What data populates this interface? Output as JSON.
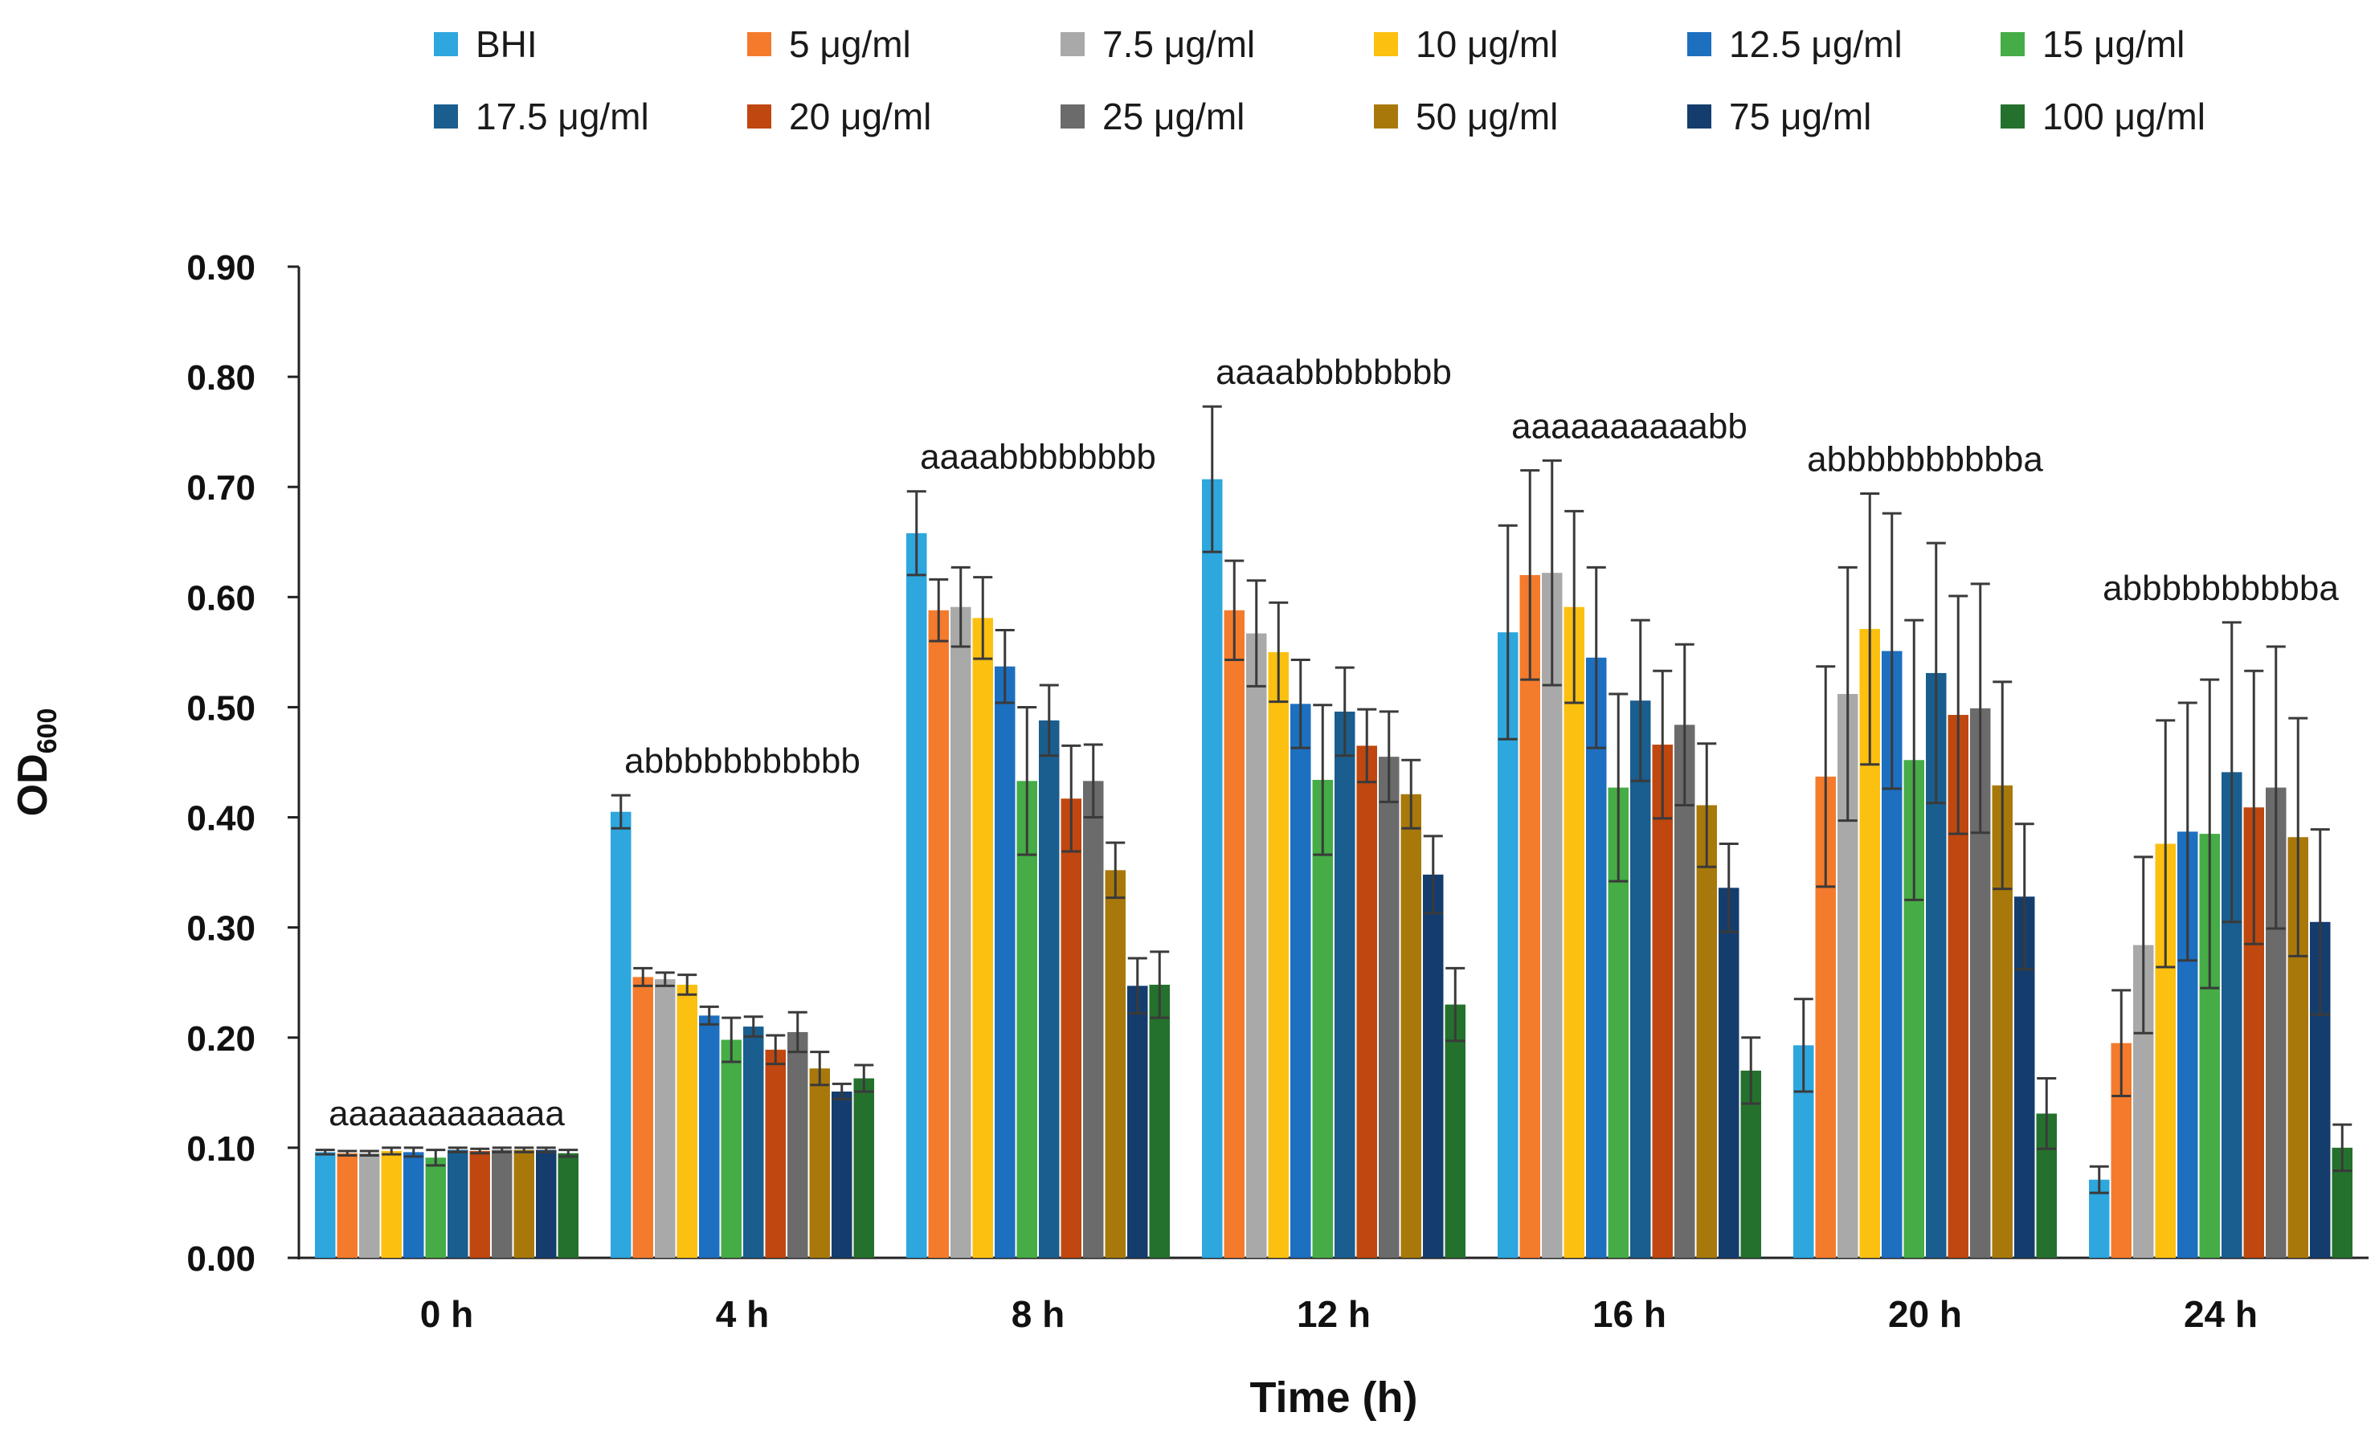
{
  "chart_data": {
    "type": "bar",
    "title": "",
    "xlabel": "Time (h)",
    "ylabel_main": "OD",
    "ylabel_sub": "600",
    "ylim": [
      0,
      0.9
    ],
    "yticks": [
      "0.00",
      "0.10",
      "0.20",
      "0.30",
      "0.40",
      "0.50",
      "0.60",
      "0.70",
      "0.80",
      "0.90"
    ],
    "categories": [
      "0 h",
      "4 h",
      "8 h",
      "12 h",
      "16 h",
      "20 h",
      "24 h"
    ],
    "significance_labels": [
      "aaaaaaaaaaaa",
      "abbbbbbbbbbb",
      "aaaabbbbbbbb",
      "aaaabbbbbbbb",
      "aaaaaaaaaabb",
      "abbbbbbbbbba",
      "abbbbbbbbbba"
    ],
    "series": [
      {
        "name": "BHI",
        "color": "#2ea6de",
        "values": [
          0.096,
          0.405,
          0.658,
          0.707,
          0.568,
          0.193,
          0.071
        ],
        "errors": [
          0.002,
          0.015,
          0.038,
          0.066,
          0.097,
          0.042,
          0.012
        ]
      },
      {
        "name": "5 μg/ml",
        "color": "#f47b2c",
        "values": [
          0.095,
          0.255,
          0.588,
          0.588,
          0.62,
          0.437,
          0.195
        ],
        "errors": [
          0.002,
          0.008,
          0.028,
          0.045,
          0.095,
          0.1,
          0.048
        ]
      },
      {
        "name": "7.5 μg/ml",
        "color": "#a9a9a9",
        "values": [
          0.095,
          0.253,
          0.591,
          0.567,
          0.622,
          0.512,
          0.284
        ],
        "errors": [
          0.002,
          0.006,
          0.036,
          0.048,
          0.102,
          0.115,
          0.08
        ]
      },
      {
        "name": "10 μg/ml",
        "color": "#fcc010",
        "values": [
          0.097,
          0.248,
          0.581,
          0.55,
          0.591,
          0.571,
          0.376
        ],
        "errors": [
          0.003,
          0.009,
          0.037,
          0.045,
          0.087,
          0.123,
          0.112
        ]
      },
      {
        "name": "12.5 μg/ml",
        "color": "#1d6fc0",
        "values": [
          0.096,
          0.22,
          0.537,
          0.503,
          0.545,
          0.551,
          0.387
        ],
        "errors": [
          0.004,
          0.008,
          0.033,
          0.04,
          0.082,
          0.125,
          0.117
        ]
      },
      {
        "name": "15 μg/ml",
        "color": "#45ac46",
        "values": [
          0.091,
          0.198,
          0.433,
          0.434,
          0.427,
          0.452,
          0.385
        ],
        "errors": [
          0.007,
          0.02,
          0.067,
          0.068,
          0.085,
          0.127,
          0.14
        ]
      },
      {
        "name": "17.5 μg/ml",
        "color": "#195e8e",
        "values": [
          0.098,
          0.21,
          0.488,
          0.496,
          0.506,
          0.531,
          0.441
        ],
        "errors": [
          0.002,
          0.009,
          0.032,
          0.04,
          0.073,
          0.118,
          0.136
        ]
      },
      {
        "name": "20 μg/ml",
        "color": "#c0470f",
        "values": [
          0.097,
          0.189,
          0.417,
          0.465,
          0.466,
          0.493,
          0.409
        ],
        "errors": [
          0.002,
          0.013,
          0.048,
          0.033,
          0.067,
          0.108,
          0.124
        ]
      },
      {
        "name": "25 μg/ml",
        "color": "#6b6b6b",
        "values": [
          0.098,
          0.205,
          0.433,
          0.455,
          0.484,
          0.499,
          0.427
        ],
        "errors": [
          0.002,
          0.018,
          0.033,
          0.041,
          0.073,
          0.113,
          0.128
        ]
      },
      {
        "name": "50 μg/ml",
        "color": "#a8790a",
        "values": [
          0.098,
          0.172,
          0.352,
          0.421,
          0.411,
          0.429,
          0.382
        ],
        "errors": [
          0.002,
          0.015,
          0.025,
          0.031,
          0.056,
          0.094,
          0.108
        ]
      },
      {
        "name": "75 μg/ml",
        "color": "#143d6e",
        "values": [
          0.098,
          0.151,
          0.247,
          0.348,
          0.336,
          0.328,
          0.305
        ],
        "errors": [
          0.002,
          0.007,
          0.025,
          0.035,
          0.04,
          0.066,
          0.084
        ]
      },
      {
        "name": "100 μg/ml",
        "color": "#24712d",
        "values": [
          0.095,
          0.163,
          0.248,
          0.23,
          0.17,
          0.131,
          0.1
        ],
        "errors": [
          0.003,
          0.012,
          0.03,
          0.033,
          0.03,
          0.032,
          0.021
        ]
      }
    ]
  }
}
